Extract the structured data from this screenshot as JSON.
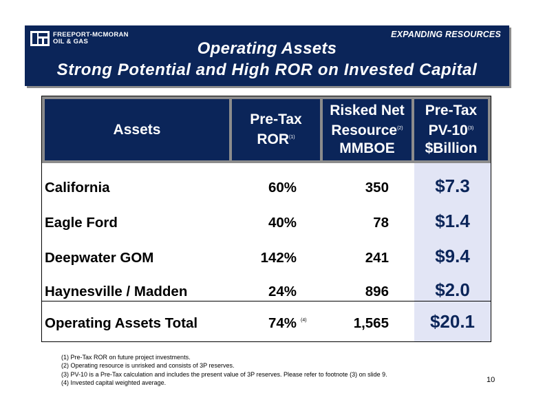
{
  "header": {
    "logo_line1": "FREEPORT-MCMORAN",
    "logo_line2": "OIL & GAS",
    "section_label": "EXPANDING RESOURCES",
    "title": "Operating Assets",
    "subtitle": "Strong Potential and High ROR on Invested Capital",
    "colors": {
      "banner": "#0b2559",
      "pv_column": "#e2e5f5",
      "header_border": "#8c8c8c"
    }
  },
  "table": {
    "columns": [
      {
        "lines": [
          "Assets"
        ],
        "sup": ""
      },
      {
        "lines": [
          "Pre-Tax",
          "ROR"
        ],
        "sup": "(1)"
      },
      {
        "lines": [
          "Risked Net",
          "Resource",
          "MMBOE"
        ],
        "sup": "(2)"
      },
      {
        "lines": [
          "Pre-Tax",
          "PV-10",
          "$Billion"
        ],
        "sup": "(3)"
      }
    ],
    "rows": [
      {
        "asset": "California",
        "ror": "60%",
        "resource": "350",
        "pv": "$7.3"
      },
      {
        "asset": "Eagle Ford",
        "ror": "40%",
        "resource": "78",
        "pv": "$1.4"
      },
      {
        "asset": "Deepwater GOM",
        "ror": "142%",
        "resource": "241",
        "pv": "$9.4"
      },
      {
        "asset": "Haynesville /  Madden",
        "ror": "24%",
        "resource": "896",
        "pv": "$2.0"
      }
    ],
    "total": {
      "asset": "Operating Assets Total",
      "ror": "74%",
      "ror_note": "(4)",
      "resource": "1,565",
      "pv": "$20.1"
    }
  },
  "footnotes": [
    "(1) Pre-Tax ROR on future project investments.",
    "(2) Operating resource is unrisked and consists of 3P reserves.",
    "(3) PV-10 is a Pre-Tax calculation and includes the present value of 3P reserves. Please refer to footnote (3) on slide 9.",
    "(4) Invested capital weighted average."
  ],
  "page_number": "10"
}
